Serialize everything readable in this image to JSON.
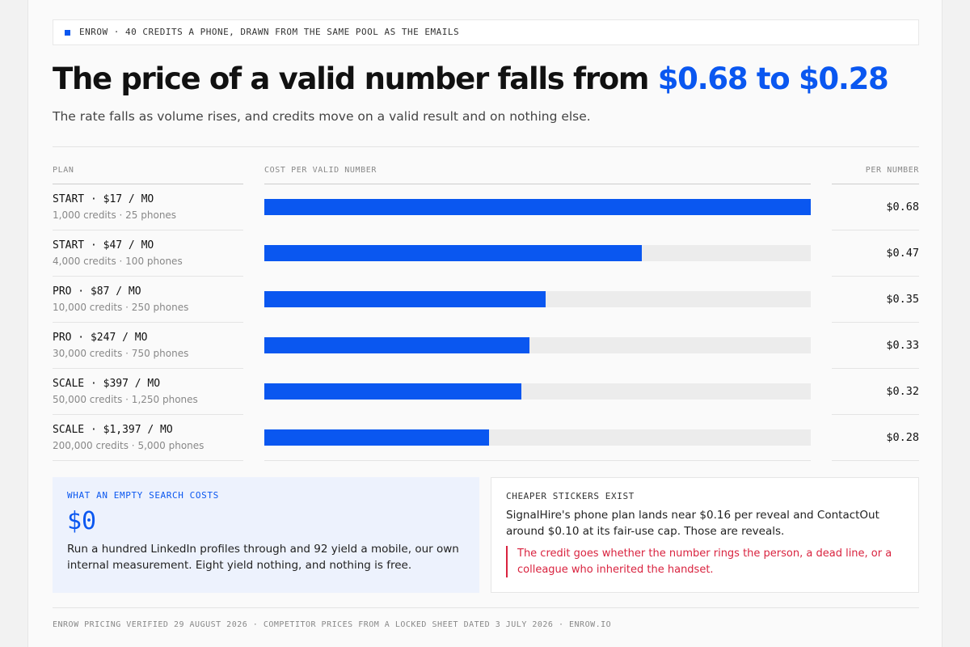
{
  "tag": "ENROW · 40 CREDITS A PHONE, DRAWN FROM THE SAME POOL AS THE EMAILS",
  "title": {
    "lead": "The price of a valid number falls from",
    "highlight": "$0.68 to $0.28"
  },
  "subtitle": "The rate falls as volume rises, and credits move on a valid result and on nothing else.",
  "table": {
    "columns": [
      "PLAN",
      "COST PER VALID NUMBER",
      "PER NUMBER"
    ],
    "xlim": [
      0,
      0.68
    ],
    "bar_color": "#0a57f0",
    "rows": [
      {
        "plan": "START · $17 / MO",
        "detail": "1,000 credits · 25 phones",
        "value": 0.68,
        "value_label": "$0.68"
      },
      {
        "plan": "START · $47 / MO",
        "detail": "4,000 credits · 100 phones",
        "value": 0.47,
        "value_label": "$0.47"
      },
      {
        "plan": "PRO · $87 / MO",
        "detail": "10,000 credits · 250 phones",
        "value": 0.35,
        "value_label": "$0.35"
      },
      {
        "plan": "PRO · $247 / MO",
        "detail": "30,000 credits · 750 phones",
        "value": 0.33,
        "value_label": "$0.33"
      },
      {
        "plan": "SCALE · $397 / MO",
        "detail": "50,000 credits · 1,250 phones",
        "value": 0.32,
        "value_label": "$0.32"
      },
      {
        "plan": "SCALE · $1,397 / MO",
        "detail": "200,000 credits · 5,000 phones",
        "value": 0.28,
        "value_label": "$0.28"
      }
    ]
  },
  "cards": [
    {
      "label": "WHAT AN EMPTY SEARCH COSTS",
      "figure": "$0",
      "body": "Run a hundred LinkedIn profiles through and 92 yield a mobile, our own internal measurement. Eight yield nothing, and nothing is free."
    },
    {
      "label": "CHEAPER STICKERS EXIST",
      "body": "SignalHire's phone plan lands near $0.16 per reveal and ContactOut around $0.10 at its fair-use cap. Those are reveals.",
      "quote": "The credit goes whether the number rings the person, a dead line, or a colleague who inherited the handset."
    }
  ],
  "footer": "ENROW PRICING VERIFIED 29 AUGUST 2026 · COMPETITOR PRICES FROM A LOCKED SHEET DATED 3 JULY 2026 · ENROW.IO"
}
